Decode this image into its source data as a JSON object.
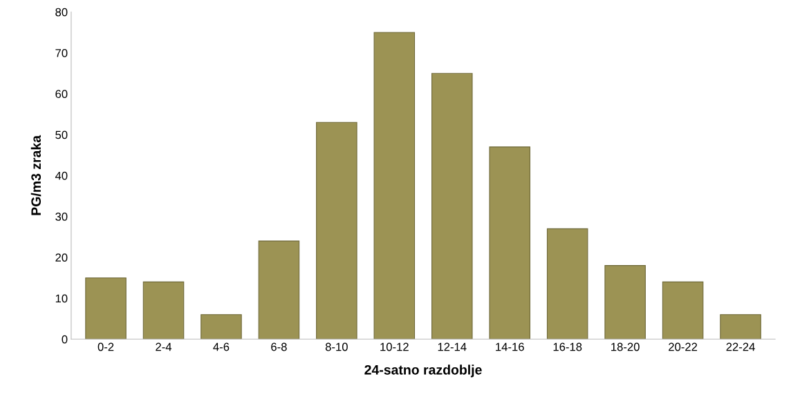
{
  "chart_data": {
    "type": "bar",
    "xlabel": "24-satno razdoblje",
    "ylabel": "PG/m3 zraka",
    "categories": [
      "0-2",
      "2-4",
      "4-6",
      "6-8",
      "8-10",
      "10-12",
      "12-14",
      "14-16",
      "16-18",
      "18-20",
      "20-22",
      "22-24"
    ],
    "values": [
      15,
      14,
      6,
      24,
      53,
      75,
      65,
      47,
      27,
      18,
      14,
      6
    ],
    "color": "#9c9354",
    "ylim": [
      0,
      80
    ],
    "yticks": [
      0,
      10,
      20,
      30,
      40,
      50,
      60,
      70,
      80
    ],
    "grid": false
  }
}
